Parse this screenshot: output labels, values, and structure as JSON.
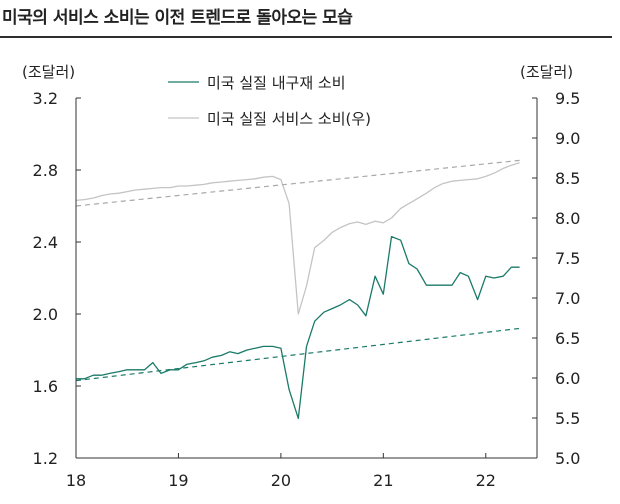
{
  "title": "미국의 서비스 소비는 이전 트렌드로 돌아오는 모습",
  "chart_data": {
    "type": "line",
    "left_axis_unit": "(조달러)",
    "right_axis_unit": "(조달러)",
    "xlim": [
      2018.0,
      2022.5
    ],
    "x_ticks": [
      "18",
      "19",
      "20",
      "21",
      "22"
    ],
    "y_left": {
      "ylim": [
        1.2,
        3.2
      ],
      "ticks": [
        "3.2",
        "2.8",
        "2.4",
        "2.0",
        "1.6",
        "1.2"
      ]
    },
    "y_right": {
      "ylim": [
        5.0,
        9.5
      ],
      "ticks": [
        "9.5",
        "9.0",
        "8.5",
        "8.0",
        "7.5",
        "7.0",
        "6.5",
        "6.0",
        "5.5",
        "5.0"
      ]
    },
    "legend_position": "top-center",
    "colors": {
      "durable": "#1a7a68",
      "services": "#c4c4c4",
      "services_trend": "#a8a8a8"
    },
    "series": [
      {
        "name": "미국 실질 내구재 소비",
        "axis": "left",
        "style": "solid",
        "x": [
          2018.0,
          2018.08,
          2018.17,
          2018.25,
          2018.33,
          2018.42,
          2018.5,
          2018.58,
          2018.67,
          2018.75,
          2018.83,
          2018.92,
          2019.0,
          2019.08,
          2019.17,
          2019.25,
          2019.33,
          2019.42,
          2019.5,
          2019.58,
          2019.67,
          2019.75,
          2019.83,
          2019.92,
          2020.0,
          2020.08,
          2020.17,
          2020.25,
          2020.33,
          2020.42,
          2020.5,
          2020.58,
          2020.67,
          2020.75,
          2020.83,
          2020.92,
          2021.0,
          2021.08,
          2021.17,
          2021.25,
          2021.33,
          2021.42,
          2021.5,
          2021.58,
          2021.67,
          2021.75,
          2021.83,
          2021.92,
          2022.0,
          2022.08,
          2022.17,
          2022.25,
          2022.33
        ],
        "values": [
          1.64,
          1.64,
          1.66,
          1.66,
          1.67,
          1.68,
          1.69,
          1.69,
          1.69,
          1.73,
          1.67,
          1.69,
          1.69,
          1.72,
          1.73,
          1.74,
          1.76,
          1.77,
          1.79,
          1.78,
          1.8,
          1.81,
          1.82,
          1.82,
          1.81,
          1.58,
          1.42,
          1.82,
          1.96,
          2.01,
          2.03,
          2.05,
          2.08,
          2.05,
          1.99,
          2.21,
          2.11,
          2.43,
          2.41,
          2.28,
          2.25,
          2.16,
          2.16,
          2.16,
          2.16,
          2.23,
          2.21,
          2.08,
          2.21,
          2.2,
          2.21,
          2.26,
          2.26
        ]
      },
      {
        "name": "미국 실질 서비스 소비(우)",
        "axis": "right",
        "style": "solid",
        "x": [
          2018.0,
          2018.08,
          2018.17,
          2018.25,
          2018.33,
          2018.42,
          2018.5,
          2018.58,
          2018.67,
          2018.75,
          2018.83,
          2018.92,
          2019.0,
          2019.08,
          2019.17,
          2019.25,
          2019.33,
          2019.42,
          2019.5,
          2019.58,
          2019.67,
          2019.75,
          2019.83,
          2019.92,
          2020.0,
          2020.08,
          2020.17,
          2020.25,
          2020.33,
          2020.42,
          2020.5,
          2020.58,
          2020.67,
          2020.75,
          2020.83,
          2020.92,
          2021.0,
          2021.08,
          2021.17,
          2021.25,
          2021.33,
          2021.42,
          2021.5,
          2021.58,
          2021.67,
          2021.75,
          2021.83,
          2021.92,
          2022.0,
          2022.08,
          2022.17,
          2022.25,
          2022.33
        ],
        "values": [
          8.22,
          8.23,
          8.25,
          8.28,
          8.3,
          8.31,
          8.33,
          8.35,
          8.36,
          8.37,
          8.38,
          8.38,
          8.4,
          8.4,
          8.41,
          8.42,
          8.44,
          8.45,
          8.46,
          8.47,
          8.48,
          8.49,
          8.51,
          8.52,
          8.48,
          8.18,
          6.8,
          7.15,
          7.63,
          7.72,
          7.82,
          7.88,
          7.93,
          7.95,
          7.92,
          7.96,
          7.94,
          8.0,
          8.12,
          8.18,
          8.24,
          8.31,
          8.38,
          8.43,
          8.46,
          8.47,
          8.48,
          8.49,
          8.52,
          8.56,
          8.62,
          8.66,
          8.69
        ]
      },
      {
        "axis": "left",
        "style": "dashed",
        "x": [
          2018.0,
          2022.33
        ],
        "values": [
          1.63,
          1.92
        ]
      },
      {
        "axis": "right",
        "style": "dashed",
        "x": [
          2018.0,
          2022.33
        ],
        "values": [
          8.15,
          8.72
        ]
      }
    ]
  }
}
